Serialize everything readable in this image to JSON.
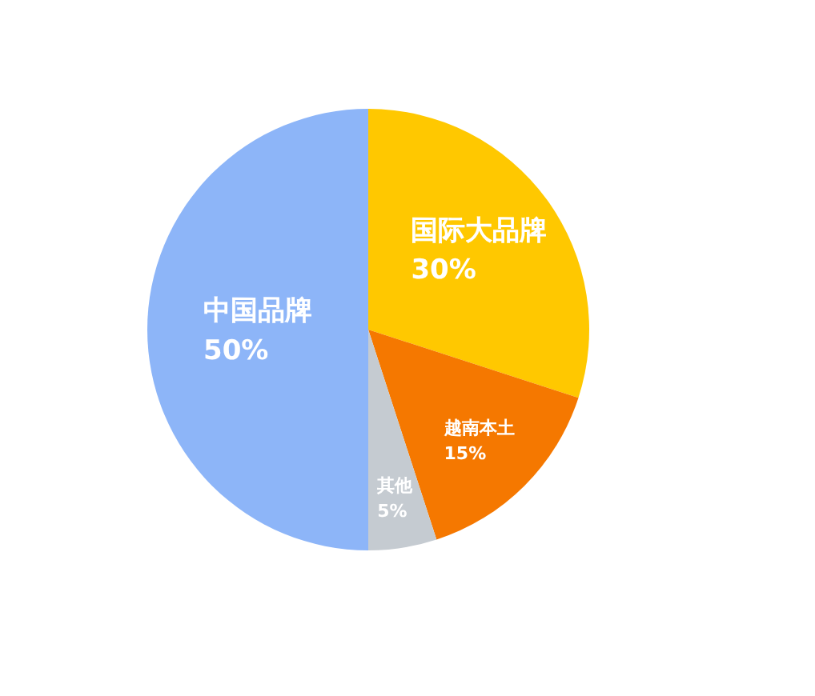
{
  "chart_data": {
    "type": "pie",
    "categories": [
      "国际大品牌",
      "越南本土",
      "其他",
      "中国品牌"
    ],
    "values": [
      30,
      15,
      5,
      50
    ],
    "colors": [
      "#ffc800",
      "#f57800",
      "#c5cbd1",
      "#8db5f8"
    ],
    "value_labels": [
      "30%",
      "15%",
      "5%",
      "50%"
    ]
  }
}
